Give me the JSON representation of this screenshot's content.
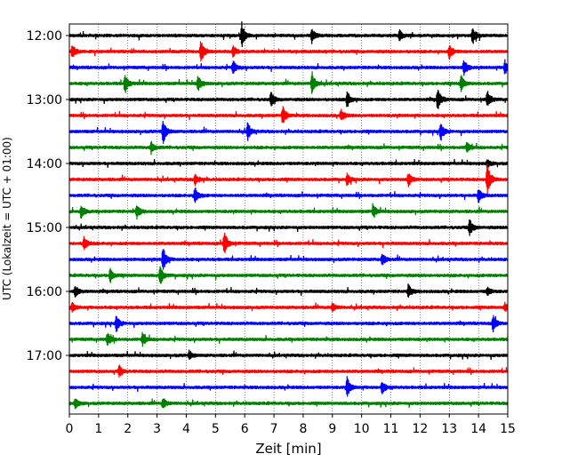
{
  "chart_data": {
    "type": "line",
    "title": "",
    "xlabel": "Zeit  [min]",
    "ylabel": "UTC (Lokalzeit = UTC + 01:00)",
    "xlim": [
      0,
      15
    ],
    "x_ticks": [
      0,
      1,
      2,
      3,
      4,
      5,
      6,
      7,
      8,
      9,
      10,
      11,
      12,
      13,
      14,
      15
    ],
    "x_grid": "dotted vertical at each minute",
    "y_ticks": [
      "12:00",
      "13:00",
      "14:00",
      "15:00",
      "16:00",
      "17:00"
    ],
    "trace_interval_minutes": 15,
    "trace_colors": [
      "#000000",
      "#ff0000",
      "#0000ff",
      "#008000"
    ],
    "traces": [
      {
        "start": "12:00",
        "color": "#000000",
        "events": [
          {
            "t": 5.9,
            "amp": 0.9
          },
          {
            "t": 8.3,
            "amp": 0.5
          },
          {
            "t": 11.3,
            "amp": 0.4
          },
          {
            "t": 13.8,
            "amp": 0.6
          }
        ]
      },
      {
        "start": "12:15",
        "color": "#ff0000",
        "events": [
          {
            "t": 0.1,
            "amp": 0.5
          },
          {
            "t": 4.5,
            "amp": 0.8
          },
          {
            "t": 5.6,
            "amp": 0.4
          },
          {
            "t": 13.0,
            "amp": 0.5
          }
        ]
      },
      {
        "start": "12:30",
        "color": "#0000ff",
        "events": [
          {
            "t": 5.6,
            "amp": 0.5
          },
          {
            "t": 13.5,
            "amp": 0.6
          },
          {
            "t": 14.9,
            "amp": 0.5
          }
        ]
      },
      {
        "start": "12:45",
        "color": "#008000",
        "events": [
          {
            "t": 1.9,
            "amp": 0.7
          },
          {
            "t": 4.4,
            "amp": 0.6
          },
          {
            "t": 8.3,
            "amp": 0.8
          },
          {
            "t": 13.4,
            "amp": 0.6
          }
        ]
      },
      {
        "start": "13:00",
        "color": "#000000",
        "events": [
          {
            "t": 6.9,
            "amp": 0.5
          },
          {
            "t": 9.5,
            "amp": 0.6
          },
          {
            "t": 12.6,
            "amp": 0.8
          },
          {
            "t": 14.3,
            "amp": 0.6
          }
        ]
      },
      {
        "start": "13:15",
        "color": "#ff0000",
        "events": [
          {
            "t": 7.3,
            "amp": 0.7
          },
          {
            "t": 9.3,
            "amp": 0.4
          }
        ]
      },
      {
        "start": "13:30",
        "color": "#0000ff",
        "events": [
          {
            "t": 3.2,
            "amp": 0.9
          },
          {
            "t": 6.1,
            "amp": 0.6
          },
          {
            "t": 12.7,
            "amp": 0.7
          }
        ]
      },
      {
        "start": "13:45",
        "color": "#008000",
        "events": [
          {
            "t": 2.8,
            "amp": 0.4
          },
          {
            "t": 13.6,
            "amp": 0.4
          }
        ]
      },
      {
        "start": "14:00",
        "color": "#000000",
        "events": [
          {
            "t": 14.3,
            "amp": 0.3
          }
        ]
      },
      {
        "start": "14:15",
        "color": "#ff0000",
        "events": [
          {
            "t": 4.3,
            "amp": 0.4
          },
          {
            "t": 9.5,
            "amp": 0.4
          },
          {
            "t": 11.6,
            "amp": 0.5
          },
          {
            "t": 14.3,
            "amp": 1.2
          }
        ]
      },
      {
        "start": "14:30",
        "color": "#0000ff",
        "events": [
          {
            "t": 4.3,
            "amp": 0.6
          },
          {
            "t": 14.0,
            "amp": 0.5
          }
        ]
      },
      {
        "start": "14:45",
        "color": "#008000",
        "events": [
          {
            "t": 0.4,
            "amp": 0.5
          },
          {
            "t": 2.3,
            "amp": 0.5
          },
          {
            "t": 10.4,
            "amp": 0.5
          }
        ]
      },
      {
        "start": "15:00",
        "color": "#000000",
        "events": [
          {
            "t": 13.7,
            "amp": 0.6
          }
        ]
      },
      {
        "start": "15:15",
        "color": "#ff0000",
        "events": [
          {
            "t": 0.5,
            "amp": 0.5
          },
          {
            "t": 5.3,
            "amp": 0.9
          }
        ]
      },
      {
        "start": "15:30",
        "color": "#0000ff",
        "events": [
          {
            "t": 3.2,
            "amp": 0.9
          },
          {
            "t": 10.7,
            "amp": 0.4
          }
        ]
      },
      {
        "start": "15:45",
        "color": "#008000",
        "events": [
          {
            "t": 1.4,
            "amp": 0.5
          },
          {
            "t": 3.1,
            "amp": 0.7
          }
        ]
      },
      {
        "start": "16:00",
        "color": "#000000",
        "events": [
          {
            "t": 0.2,
            "amp": 0.4
          },
          {
            "t": 11.6,
            "amp": 0.5
          },
          {
            "t": 14.3,
            "amp": 0.3
          }
        ]
      },
      {
        "start": "16:15",
        "color": "#ff0000",
        "events": [
          {
            "t": 0.1,
            "amp": 0.3
          },
          {
            "t": 9.0,
            "amp": 0.3
          },
          {
            "t": 14.9,
            "amp": 0.3
          }
        ]
      },
      {
        "start": "16:30",
        "color": "#0000ff",
        "events": [
          {
            "t": 1.6,
            "amp": 0.6
          },
          {
            "t": 14.5,
            "amp": 0.6
          }
        ]
      },
      {
        "start": "16:45",
        "color": "#008000",
        "events": [
          {
            "t": 1.3,
            "amp": 0.5
          },
          {
            "t": 2.5,
            "amp": 0.5
          }
        ]
      },
      {
        "start": "17:00",
        "color": "#000000",
        "events": [
          {
            "t": 4.1,
            "amp": 0.3
          }
        ]
      },
      {
        "start": "17:15",
        "color": "#ff0000",
        "events": [
          {
            "t": 1.7,
            "amp": 0.4
          }
        ]
      },
      {
        "start": "17:30",
        "color": "#0000ff",
        "events": [
          {
            "t": 9.5,
            "amp": 0.7
          },
          {
            "t": 10.7,
            "amp": 0.5
          }
        ]
      },
      {
        "start": "17:45",
        "color": "#008000",
        "events": [
          {
            "t": 0.2,
            "amp": 0.4
          },
          {
            "t": 3.2,
            "amp": 0.4
          }
        ]
      }
    ]
  }
}
